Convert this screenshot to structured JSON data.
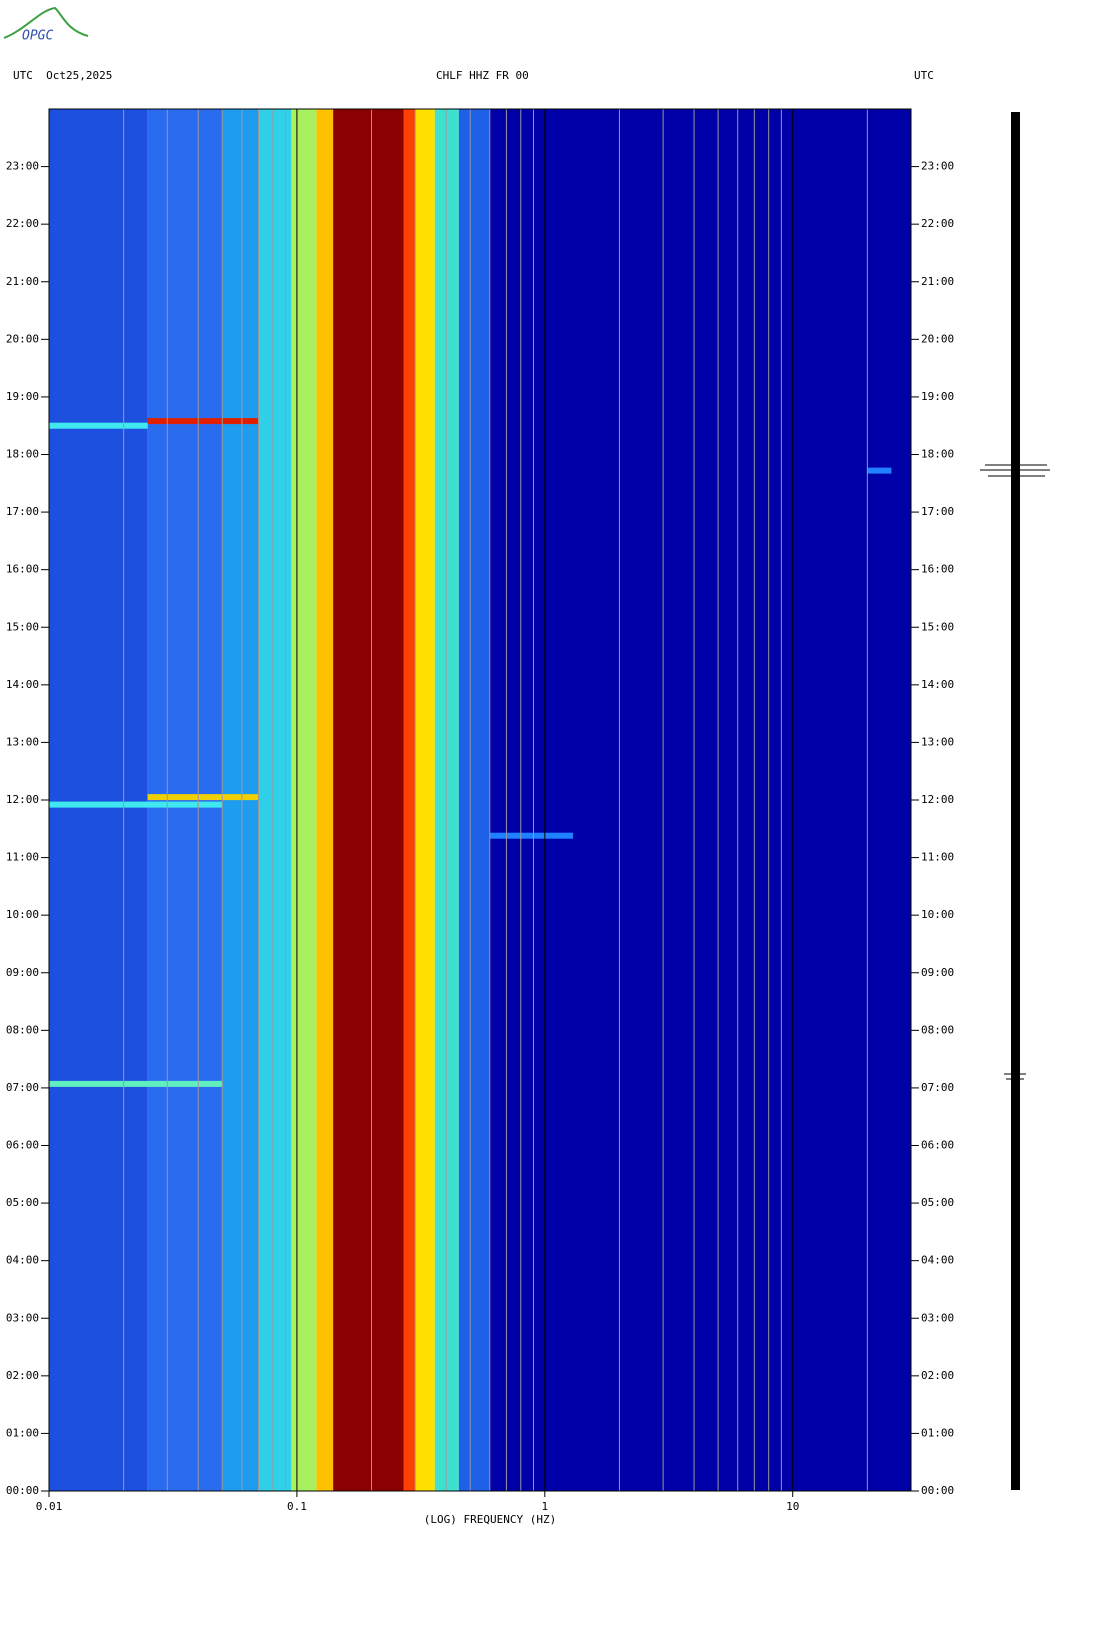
{
  "logo": "OPGC",
  "chart_data": {
    "type": "spectrogram",
    "title": "CHLF HHZ FR 00",
    "left_header": "UTC  Oct25,2025",
    "right_header": "UTC",
    "x_label": "(LOG) FREQUENCY (HZ)",
    "x_log": true,
    "xlim": [
      0.01,
      30
    ],
    "xticks": [
      0.01,
      0.1,
      1,
      10
    ],
    "xgrid": [
      0.02,
      0.03,
      0.04,
      0.05,
      0.06,
      0.07,
      0.08,
      0.09,
      0.2,
      0.3,
      0.4,
      0.5,
      0.6,
      0.7,
      0.8,
      0.9,
      2,
      3,
      4,
      5,
      6,
      7,
      8,
      9,
      20
    ],
    "ylim": [
      0,
      24
    ],
    "yticks": [
      {
        "value": 0,
        "label": "00:00"
      },
      {
        "value": 1,
        "label": "01:00"
      },
      {
        "value": 2,
        "label": "02:00"
      },
      {
        "value": 3,
        "label": "03:00"
      },
      {
        "value": 4,
        "label": "04:00"
      },
      {
        "value": 5,
        "label": "05:00"
      },
      {
        "value": 6,
        "label": "06:00"
      },
      {
        "value": 7,
        "label": "07:00"
      },
      {
        "value": 8,
        "label": "08:00"
      },
      {
        "value": 9,
        "label": "09:00"
      },
      {
        "value": 10,
        "label": "10:00"
      },
      {
        "value": 11,
        "label": "11:00"
      },
      {
        "value": 12,
        "label": "12:00"
      },
      {
        "value": 13,
        "label": "13:00"
      },
      {
        "value": 14,
        "label": "14:00"
      },
      {
        "value": 15,
        "label": "15:00"
      },
      {
        "value": 16,
        "label": "16:00"
      },
      {
        "value": 17,
        "label": "17:00"
      },
      {
        "value": 18,
        "label": "18:00"
      },
      {
        "value": 19,
        "label": "19:00"
      },
      {
        "value": 20,
        "label": "20:00"
      },
      {
        "value": 21,
        "label": "21:00"
      },
      {
        "value": 22,
        "label": "22:00"
      },
      {
        "value": 23,
        "label": "23:00"
      }
    ],
    "band_edges": [
      0.01,
      0.025,
      0.05,
      0.07,
      0.095,
      0.12,
      0.14,
      0.27,
      0.3,
      0.36,
      0.45,
      0.6,
      30
    ],
    "band_colors": [
      "#1e50e0",
      "#2a6cf0",
      "#1e9cf0",
      "#30d0e8",
      "#a8f060",
      "#ffc000",
      "#8b0000",
      "#ff4000",
      "#ffe000",
      "#40e0d0",
      "#1e60e8",
      "#0000a8"
    ],
    "events": [
      {
        "time": 18.58,
        "fmin": 0.025,
        "fmax": 0.07,
        "color": "#e02000"
      },
      {
        "time": 18.5,
        "fmin": 0.01,
        "fmax": 0.025,
        "color": "#40e8f0"
      },
      {
        "time": 12.05,
        "fmin": 0.025,
        "fmax": 0.07,
        "color": "#f0d000"
      },
      {
        "time": 11.92,
        "fmin": 0.01,
        "fmax": 0.05,
        "color": "#40e8f0"
      },
      {
        "time": 7.07,
        "fmin": 0.01,
        "fmax": 0.05,
        "color": "#60f0c0"
      },
      {
        "time": 11.38,
        "fmin": 0.6,
        "fmax": 1.3,
        "color": "#2080ff"
      },
      {
        "time": 17.72,
        "fmin": 20,
        "fmax": 25,
        "color": "#2080ff"
      }
    ],
    "grid": true
  }
}
